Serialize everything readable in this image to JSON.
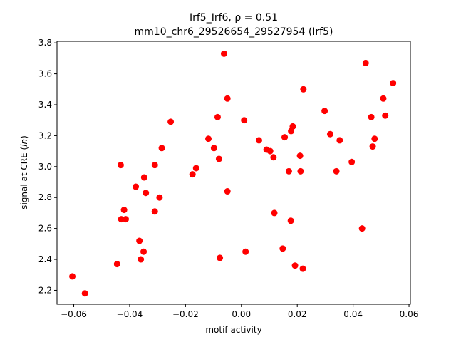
{
  "chart_data": {
    "type": "scatter",
    "title": "Irf5_Irf6, ρ = 0.51",
    "subtitle": "mm10_chr6_29526654_29527954 (Irf5)",
    "xlabel": "motif activity",
    "ylabel_prefix": "signal at CRE (",
    "ylabel_italic": "ln",
    "ylabel_suffix": ")",
    "xlim": [
      -0.066,
      0.0605
    ],
    "ylim": [
      2.11,
      3.81
    ],
    "xticks": [
      -0.06,
      -0.04,
      -0.02,
      0.0,
      0.02,
      0.04,
      0.06
    ],
    "xtick_labels": [
      "−0.06",
      "−0.04",
      "−0.02",
      "0.00",
      "0.02",
      "0.04",
      "0.06"
    ],
    "yticks": [
      2.2,
      2.4,
      2.6,
      2.8,
      3.0,
      3.2,
      3.4,
      3.6,
      3.8
    ],
    "ytick_labels": [
      "2.2",
      "2.4",
      "2.6",
      "2.8",
      "3.0",
      "3.2",
      "3.4",
      "3.6",
      "3.8"
    ],
    "marker_color": "#ff0000",
    "grid": false,
    "points": [
      {
        "x": -0.0605,
        "y": 2.29
      },
      {
        "x": -0.056,
        "y": 2.18
      },
      {
        "x": -0.0445,
        "y": 2.37
      },
      {
        "x": -0.0432,
        "y": 3.01
      },
      {
        "x": -0.043,
        "y": 2.66
      },
      {
        "x": -0.042,
        "y": 2.72
      },
      {
        "x": -0.0414,
        "y": 2.66
      },
      {
        "x": -0.0378,
        "y": 2.87
      },
      {
        "x": -0.0365,
        "y": 2.52
      },
      {
        "x": -0.036,
        "y": 2.4
      },
      {
        "x": -0.035,
        "y": 2.45
      },
      {
        "x": -0.0348,
        "y": 2.93
      },
      {
        "x": -0.0342,
        "y": 2.83
      },
      {
        "x": -0.031,
        "y": 3.01
      },
      {
        "x": -0.031,
        "y": 2.71
      },
      {
        "x": -0.0293,
        "y": 2.8
      },
      {
        "x": -0.0285,
        "y": 3.12
      },
      {
        "x": -0.0253,
        "y": 3.29
      },
      {
        "x": -0.0175,
        "y": 2.95
      },
      {
        "x": -0.0162,
        "y": 2.99
      },
      {
        "x": -0.0118,
        "y": 3.18
      },
      {
        "x": -0.0098,
        "y": 3.12
      },
      {
        "x": -0.0085,
        "y": 3.32
      },
      {
        "x": -0.008,
        "y": 3.05
      },
      {
        "x": -0.0077,
        "y": 2.41
      },
      {
        "x": -0.0062,
        "y": 3.73
      },
      {
        "x": -0.005,
        "y": 3.44
      },
      {
        "x": -0.005,
        "y": 2.84
      },
      {
        "x": 0.001,
        "y": 3.3
      },
      {
        "x": 0.0015,
        "y": 2.45
      },
      {
        "x": 0.0063,
        "y": 3.17
      },
      {
        "x": 0.009,
        "y": 3.11
      },
      {
        "x": 0.0103,
        "y": 3.1
      },
      {
        "x": 0.0115,
        "y": 3.06
      },
      {
        "x": 0.0118,
        "y": 2.7
      },
      {
        "x": 0.0148,
        "y": 2.47
      },
      {
        "x": 0.0155,
        "y": 3.19
      },
      {
        "x": 0.017,
        "y": 2.97
      },
      {
        "x": 0.0177,
        "y": 2.65
      },
      {
        "x": 0.0178,
        "y": 3.23
      },
      {
        "x": 0.0184,
        "y": 3.26
      },
      {
        "x": 0.0192,
        "y": 2.36
      },
      {
        "x": 0.021,
        "y": 3.07
      },
      {
        "x": 0.0212,
        "y": 2.97
      },
      {
        "x": 0.022,
        "y": 2.34
      },
      {
        "x": 0.0222,
        "y": 3.5
      },
      {
        "x": 0.0298,
        "y": 3.36
      },
      {
        "x": 0.0318,
        "y": 3.21
      },
      {
        "x": 0.034,
        "y": 2.97
      },
      {
        "x": 0.0352,
        "y": 3.17
      },
      {
        "x": 0.0395,
        "y": 3.03
      },
      {
        "x": 0.0432,
        "y": 2.6
      },
      {
        "x": 0.0445,
        "y": 3.67
      },
      {
        "x": 0.0465,
        "y": 3.32
      },
      {
        "x": 0.047,
        "y": 3.13
      },
      {
        "x": 0.0477,
        "y": 3.18
      },
      {
        "x": 0.0508,
        "y": 3.44
      },
      {
        "x": 0.0515,
        "y": 3.33
      },
      {
        "x": 0.0543,
        "y": 3.54
      }
    ]
  }
}
